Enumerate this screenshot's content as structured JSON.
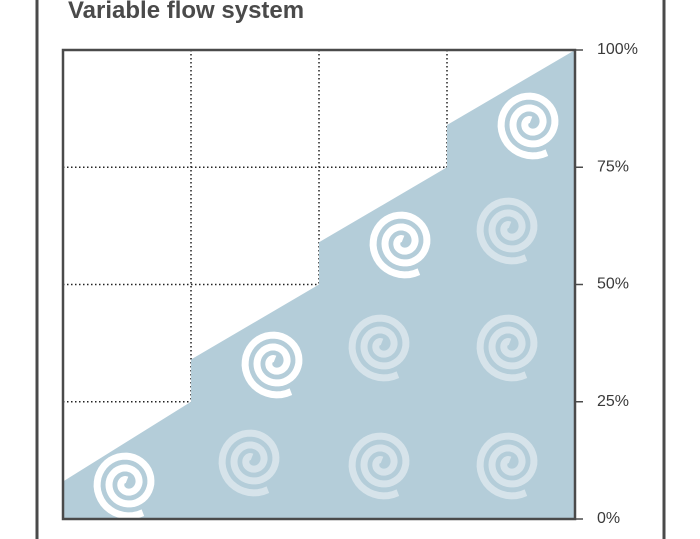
{
  "chart_data": {
    "type": "area",
    "title": "Variable flow system",
    "x": [
      0,
      1,
      1,
      2,
      2,
      3,
      3,
      4
    ],
    "values": [
      8,
      25,
      34,
      50,
      59,
      75,
      84,
      100
    ],
    "color": "#b4cdd9",
    "xlim": [
      0,
      4
    ],
    "xticks": [
      1,
      2,
      3
    ],
    "ylim": [
      0,
      100
    ],
    "yticks": [
      {
        "value": 0,
        "label": "0%"
      },
      {
        "value": 25,
        "label": "25%"
      },
      {
        "value": 50,
        "label": "50%"
      },
      {
        "value": 75,
        "label": "75%"
      },
      {
        "value": 100,
        "label": "100%"
      }
    ],
    "grid": true
  }
}
